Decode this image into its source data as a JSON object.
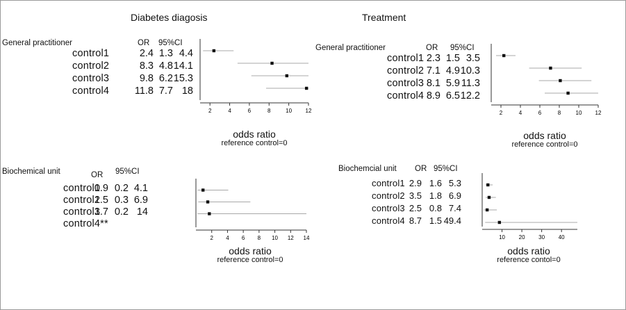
{
  "titles": {
    "left": "Diabetes diagosis",
    "right": "Treatment"
  },
  "chart_data": [
    {
      "type": "scatter",
      "group": "General practitioner",
      "column": "Diabetes diagosis",
      "header": {
        "or": "OR",
        "ci": "95%CI"
      },
      "rows": [
        {
          "label": "control1",
          "or": 2.4,
          "lo": 1.3,
          "hi": 4.4,
          "or_text": "2.4",
          "lo_text": "1.3",
          "hi_text": "4.4"
        },
        {
          "label": "control2",
          "or": 8.3,
          "lo": 4.8,
          "hi": 14.1,
          "or_text": "8.3",
          "lo_text": "4.8",
          "hi_text": "14.1"
        },
        {
          "label": "control3",
          "or": 9.8,
          "lo": 6.2,
          "hi": 15.3,
          "or_text": "9.8",
          "lo_text": "6.2",
          "hi_text": "15.3"
        },
        {
          "label": "control4",
          "or": 11.8,
          "lo": 7.7,
          "hi": 18,
          "or_text": "11.8",
          "lo_text": "7.7",
          "hi_text": "18"
        }
      ],
      "xlim": [
        1,
        12
      ],
      "ticks": [
        "2",
        "4",
        "6",
        "8",
        "10",
        "12"
      ],
      "xlabel": "odds ratio",
      "note": "reference control=0"
    },
    {
      "type": "scatter",
      "group": "General practitioner",
      "column": "Treatment",
      "header": {
        "or": "OR",
        "ci": "95%CI"
      },
      "rows": [
        {
          "label": "control1",
          "or": 2.3,
          "lo": 1.5,
          "hi": 3.5,
          "or_text": "2.3",
          "lo_text": "1.5",
          "hi_text": "3.5"
        },
        {
          "label": "control2",
          "or": 7.1,
          "lo": 4.9,
          "hi": 10.3,
          "or_text": "7.1",
          "lo_text": "4.9",
          "hi_text": "10.3"
        },
        {
          "label": "control3",
          "or": 8.1,
          "lo": 5.9,
          "hi": 11.3,
          "or_text": "8.1",
          "lo_text": "5.9",
          "hi_text": "11.3"
        },
        {
          "label": "control4",
          "or": 8.9,
          "lo": 6.5,
          "hi": 12.2,
          "or_text": "8.9",
          "lo_text": "6.5",
          "hi_text": "12.2"
        }
      ],
      "xlim": [
        1,
        12
      ],
      "ticks": [
        "2",
        "4",
        "6",
        "8",
        "10",
        "12"
      ],
      "xlabel": "odds ratio",
      "note": "reference control=0"
    },
    {
      "type": "scatter",
      "group": "Biochemical unit",
      "column": "Diabetes diagosis",
      "header": {
        "or": "OR",
        "ci": "95%CI"
      },
      "rows": [
        {
          "label": "control1",
          "or": 0.9,
          "lo": 0.2,
          "hi": 4.1,
          "or_text": "0.9",
          "lo_text": "0.2",
          "hi_text": "4.1"
        },
        {
          "label": "control2",
          "or": 1.5,
          "lo": 0.3,
          "hi": 6.9,
          "or_text": "1.5",
          "lo_text": "0.3",
          "hi_text": "6.9"
        },
        {
          "label": "control3",
          "or": 1.7,
          "lo": 0.2,
          "hi": 14,
          "or_text": "1.7",
          "lo_text": "0.2",
          "hi_text": "14"
        },
        {
          "label": "control4**"
        }
      ],
      "xlim": [
        0,
        14
      ],
      "ticks": [
        "2",
        "4",
        "6",
        "8",
        "10",
        "12",
        "14"
      ],
      "xlabel": "odds ratio",
      "note": "reference control=0"
    },
    {
      "type": "scatter",
      "group": "Biochemcial unit",
      "column": "Treatment",
      "header": {
        "or": "OR",
        "ci": "95%CI"
      },
      "rows": [
        {
          "label": "control1",
          "or": 2.9,
          "lo": 1.6,
          "hi": 5.3,
          "or_text": "2.9",
          "lo_text": "1.6",
          "hi_text": "5.3"
        },
        {
          "label": "control2",
          "or": 3.5,
          "lo": 1.8,
          "hi": 6.9,
          "or_text": "3.5",
          "lo_text": "1.8",
          "hi_text": "6.9"
        },
        {
          "label": "control3",
          "or": 2.5,
          "lo": 0.8,
          "hi": 7.4,
          "or_text": "2.5",
          "lo_text": "0.8",
          "hi_text": "7.4"
        },
        {
          "label": "control4",
          "or": 8.7,
          "lo": 1.5,
          "hi": 49.4,
          "or_text": "8.7",
          "lo_text": "1.5",
          "hi_text": "49.4"
        }
      ],
      "xlim": [
        0,
        48
      ],
      "ticks": [
        "10",
        "20",
        "30",
        "40"
      ],
      "xlabel": "odds ratio",
      "note": "reference contol=0"
    }
  ]
}
